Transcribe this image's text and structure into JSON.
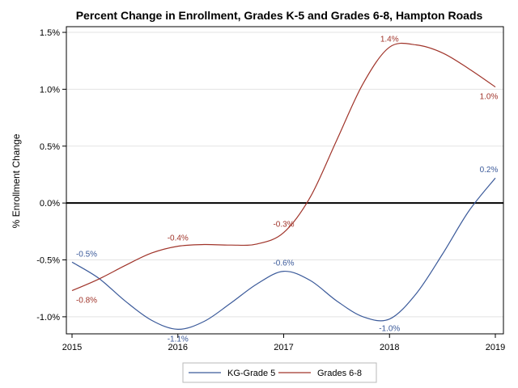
{
  "chart_data": {
    "type": "line",
    "title": "Percent Change in Enrollment, Grades K-5 and Grades 6-8, Hampton Roads",
    "xlabel": "",
    "ylabel": "% Enrollment Change",
    "x_ticks": [
      "2015",
      "2016",
      "2017",
      "2018",
      "2019"
    ],
    "y_ticks": [
      "1.5%",
      "1.0%",
      "0.5%",
      "0.0%",
      "-0.5%",
      "-1.0%"
    ],
    "xlim": [
      2015,
      2019
    ],
    "ylim": [
      -1.15,
      1.55
    ],
    "grid": true,
    "legend_position": "bottom",
    "series": [
      {
        "name": "KG-Grade 5",
        "color": "#3b5a9a",
        "points": [
          [
            2015,
            -0.52
          ],
          [
            2015.25,
            -0.66
          ],
          [
            2015.5,
            -0.86
          ],
          [
            2015.75,
            -1.03
          ],
          [
            2016,
            -1.11
          ],
          [
            2016.25,
            -1.04
          ],
          [
            2016.5,
            -0.88
          ],
          [
            2016.75,
            -0.71
          ],
          [
            2017,
            -0.6
          ],
          [
            2017.25,
            -0.68
          ],
          [
            2017.5,
            -0.86
          ],
          [
            2017.75,
            -1.0
          ],
          [
            2018,
            -1.02
          ],
          [
            2018.25,
            -0.8
          ],
          [
            2018.5,
            -0.45
          ],
          [
            2018.75,
            -0.07
          ],
          [
            2019,
            0.22
          ]
        ],
        "labels": [
          {
            "x": 2015,
            "y": -0.52,
            "text": "-0.5%",
            "pos": "above"
          },
          {
            "x": 2016,
            "y": -1.11,
            "text": "-1.1%",
            "pos": "below"
          },
          {
            "x": 2017,
            "y": -0.6,
            "text": "-0.6%",
            "pos": "above"
          },
          {
            "x": 2018,
            "y": -1.02,
            "text": "-1.0%",
            "pos": "below"
          },
          {
            "x": 2019,
            "y": 0.22,
            "text": "0.2%",
            "pos": "above"
          }
        ]
      },
      {
        "name": "Grades 6-8",
        "color": "#a0342a",
        "points": [
          [
            2015,
            -0.77
          ],
          [
            2015.25,
            -0.67
          ],
          [
            2015.5,
            -0.55
          ],
          [
            2015.75,
            -0.44
          ],
          [
            2016,
            -0.38
          ],
          [
            2016.25,
            -0.365
          ],
          [
            2016.5,
            -0.37
          ],
          [
            2016.75,
            -0.36
          ],
          [
            2017,
            -0.26
          ],
          [
            2017.25,
            0.05
          ],
          [
            2017.5,
            0.55
          ],
          [
            2017.75,
            1.05
          ],
          [
            2018,
            1.37
          ],
          [
            2018.25,
            1.39
          ],
          [
            2018.5,
            1.32
          ],
          [
            2018.75,
            1.18
          ],
          [
            2019,
            1.02
          ]
        ],
        "labels": [
          {
            "x": 2015,
            "y": -0.77,
            "text": "-0.8%",
            "pos": "below"
          },
          {
            "x": 2016,
            "y": -0.38,
            "text": "-0.4%",
            "pos": "above"
          },
          {
            "x": 2017,
            "y": -0.26,
            "text": "-0.3%",
            "pos": "above"
          },
          {
            "x": 2018,
            "y": 1.37,
            "text": "1.4%",
            "pos": "above"
          },
          {
            "x": 2019,
            "y": 1.02,
            "text": "1.0%",
            "pos": "below"
          }
        ]
      }
    ]
  }
}
